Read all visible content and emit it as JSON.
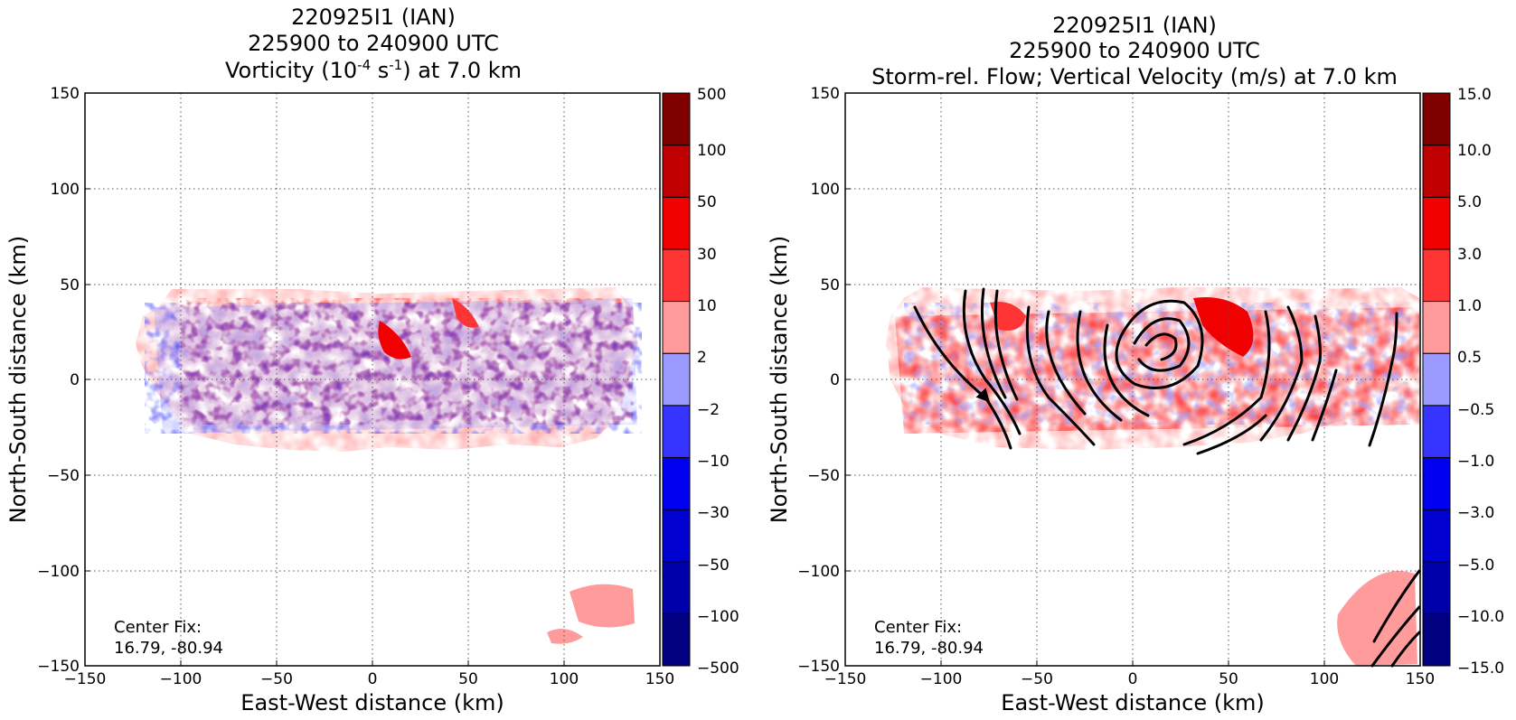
{
  "chart_data": [
    {
      "type": "heatmap",
      "title_lines": [
        "220925I1 (IAN)",
        "225900 to 240900 UTC"
      ],
      "title_var": {
        "pre": "Vorticity (10",
        "exp1": "-4",
        "mid": " s",
        "exp2": "-1",
        "post": ") at 7.0 km"
      },
      "xlabel": "East-West distance (km)",
      "ylabel": "North-South distance (km)",
      "xlim": [
        -150,
        150
      ],
      "ylim": [
        -150,
        150
      ],
      "xticks": [
        "−150",
        "−100",
        "−50",
        "0",
        "50",
        "100",
        "150"
      ],
      "yticks": [
        "−150",
        "−100",
        "−50",
        "0",
        "50",
        "100",
        "150"
      ],
      "grid": true,
      "colorbar_labels": [
        "−500",
        "−100",
        "−50",
        "−30",
        "−10",
        "−2",
        "2",
        "10",
        "30",
        "50",
        "100",
        "500"
      ],
      "colorbar_colors": [
        "#000080",
        "#0000a8",
        "#0000d0",
        "#0000f0",
        "#3535ff",
        "#9b9bff",
        "#ffffff",
        "#ff9b9b",
        "#ff3535",
        "#f00000",
        "#c00000",
        "#800000"
      ],
      "center_fix_label": "Center Fix:",
      "center_fix_value": "16.79, -80.94"
    },
    {
      "type": "heatmap",
      "title_lines": [
        "220925I1 (IAN)",
        "225900 to 240900 UTC",
        "Storm-rel. Flow; Vertical Velocity (m/s) at 7.0 km"
      ],
      "xlabel": "East-West distance (km)",
      "ylabel": "North-South distance (km)",
      "xlim": [
        -150,
        150
      ],
      "ylim": [
        -150,
        150
      ],
      "xticks": [
        "−150",
        "−100",
        "−50",
        "0",
        "50",
        "100",
        "150"
      ],
      "yticks": [
        "−150",
        "−100",
        "−50",
        "0",
        "50",
        "100",
        "150"
      ],
      "grid": true,
      "colorbar_labels": [
        "−15.0",
        "−10.0",
        "−5.0",
        "−3.0",
        "−1.0",
        "−0.5",
        "0.5",
        "1.0",
        "3.0",
        "5.0",
        "10.0",
        "15.0"
      ],
      "colorbar_colors": [
        "#000080",
        "#0000a8",
        "#0000d0",
        "#0000f0",
        "#3535ff",
        "#9b9bff",
        "#ffffff",
        "#ff9b9b",
        "#ff3535",
        "#f00000",
        "#c00000",
        "#800000"
      ],
      "center_fix_label": "Center Fix:",
      "center_fix_value": "16.79, -80.94"
    }
  ]
}
